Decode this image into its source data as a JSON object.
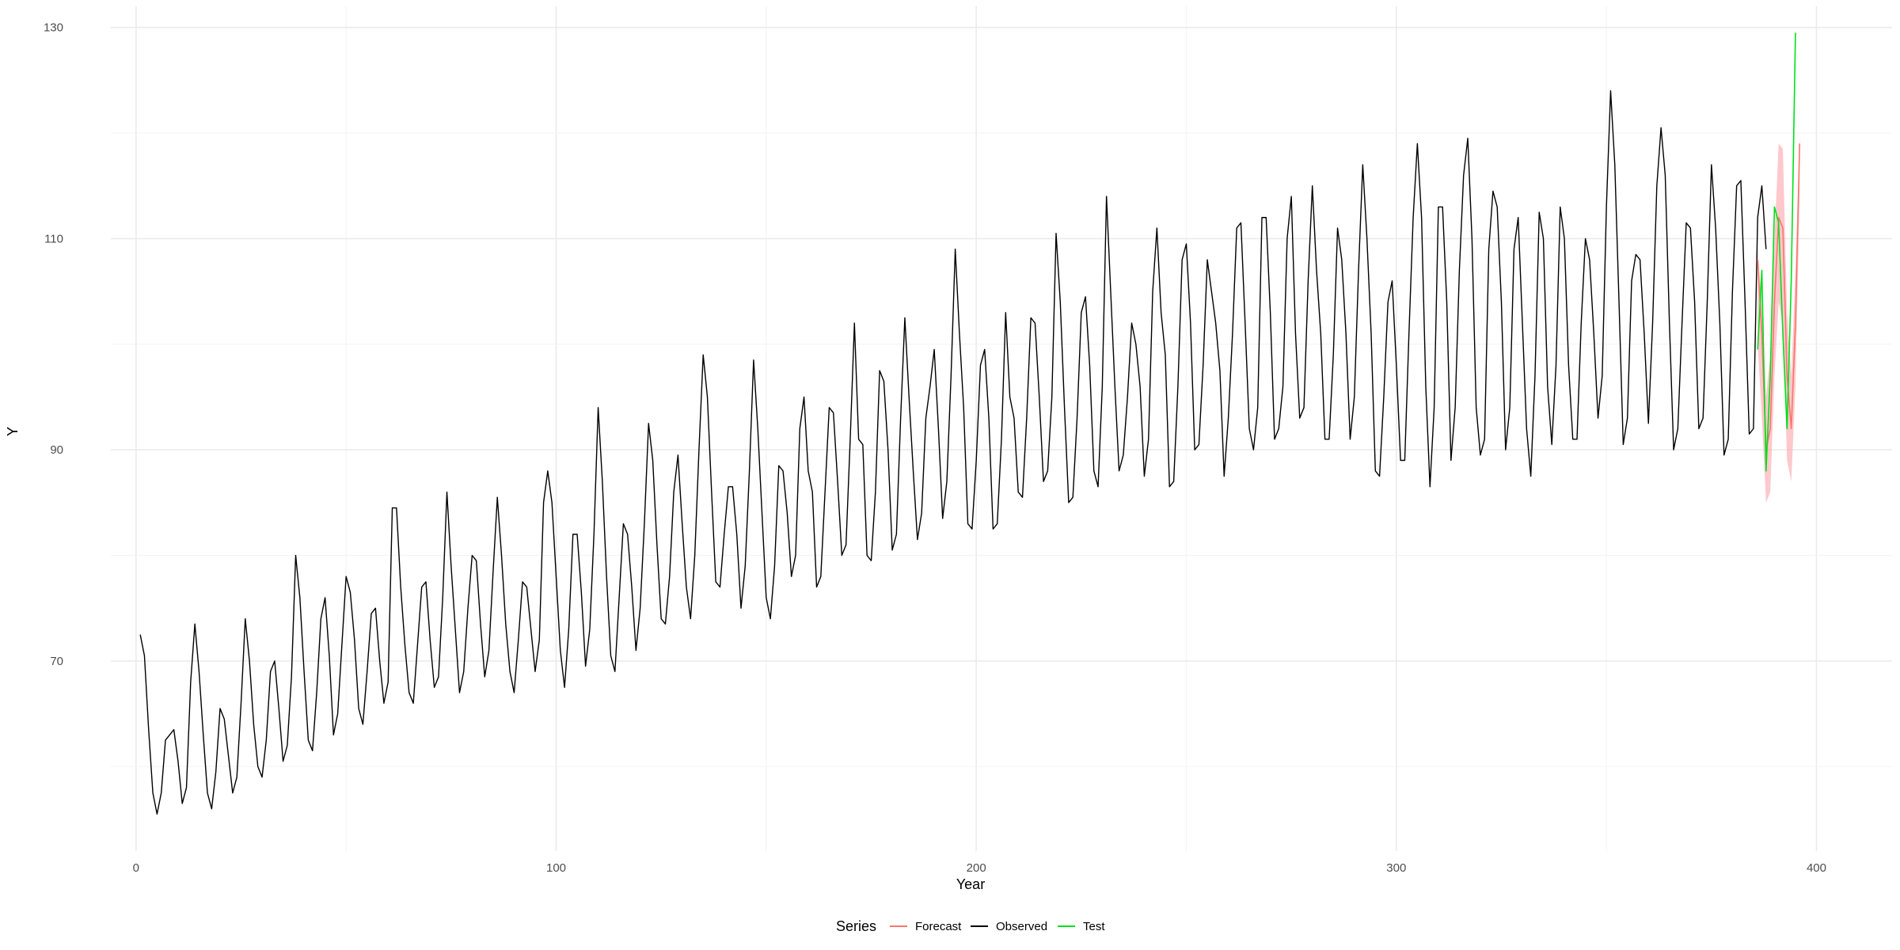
{
  "chart_data": {
    "type": "line",
    "title": "",
    "xlabel": "Year",
    "ylabel": "Y",
    "xlim": [
      -6,
      418
    ],
    "ylim": [
      52,
      132
    ],
    "x_ticks": [
      0,
      100,
      200,
      300,
      400
    ],
    "y_ticks": [
      70,
      90,
      110,
      130
    ],
    "grid": true,
    "legend": {
      "title": "Series",
      "position": "bottom",
      "entries": [
        {
          "name": "Forecast",
          "color": "#f8766d"
        },
        {
          "name": "Observed",
          "color": "#000000"
        },
        {
          "name": "Test",
          "color": "#00e01a"
        }
      ]
    },
    "series": [
      {
        "name": "Observed",
        "color": "#000000",
        "x_start": 1,
        "values": [
          72.5,
          70.5,
          63.5,
          57.5,
          55.5,
          57.5,
          62.5,
          63,
          63.5,
          60.5,
          56.5,
          58,
          68,
          73.5,
          69,
          63,
          57.5,
          56,
          59.5,
          65.5,
          64.5,
          61,
          57.5,
          59,
          66,
          74,
          70,
          64,
          60,
          59,
          62.5,
          69,
          70,
          65.5,
          60.5,
          62,
          68.5,
          80,
          76,
          69,
          62.5,
          61.5,
          67,
          74,
          76,
          70.5,
          63,
          65,
          71.5,
          78,
          76.5,
          72,
          65.5,
          64,
          69,
          74.5,
          75,
          70,
          66,
          68,
          84.5,
          84.5,
          77,
          71.5,
          67,
          66,
          71.5,
          77,
          77.5,
          72,
          67.5,
          68.5,
          76,
          86,
          79,
          73,
          67,
          69,
          75,
          80,
          79.5,
          73.5,
          68.5,
          71,
          78.5,
          85.5,
          80,
          73.5,
          69,
          67,
          72,
          77.5,
          77,
          73,
          69,
          72,
          85,
          88,
          85,
          78,
          71,
          67.5,
          73,
          82,
          82,
          76.5,
          69.5,
          73,
          82,
          94,
          87,
          78,
          70.5,
          69,
          76,
          83,
          82,
          77,
          71,
          75,
          83,
          92.5,
          89,
          81,
          74,
          73.5,
          78,
          86,
          89.5,
          83,
          77,
          74,
          80,
          90,
          99,
          95,
          86,
          77.5,
          77,
          82,
          86.5,
          86.5,
          82,
          75,
          79,
          88,
          98.5,
          92,
          84,
          76,
          74,
          79,
          88.5,
          88,
          84,
          78,
          80,
          92,
          95,
          88,
          86,
          77,
          78,
          86,
          94,
          93.5,
          87,
          80,
          81,
          91,
          102,
          91,
          90.5,
          80,
          79.5,
          86,
          97.5,
          96.5,
          90,
          80.5,
          82,
          93,
          102.5,
          95,
          88,
          81.5,
          84,
          93,
          96,
          99.5,
          92,
          83.5,
          87,
          97,
          109,
          101,
          94,
          83,
          82.5,
          89,
          98,
          99.5,
          93,
          82.5,
          83,
          91,
          103,
          95,
          93,
          86,
          85.5,
          93,
          102.5,
          102,
          95,
          87,
          88,
          95,
          110.5,
          104,
          94,
          85,
          85.5,
          93,
          103,
          104.5,
          98,
          88,
          86.5,
          96,
          114,
          105,
          96,
          88,
          89.5,
          95,
          102,
          100,
          96,
          87.5,
          91,
          105,
          111,
          103,
          99,
          86.5,
          87,
          96,
          108,
          109.5,
          102,
          90,
          90.5,
          98,
          108,
          105,
          102,
          97.5,
          87.5,
          93,
          101,
          111,
          111.5,
          102,
          92,
          90,
          94,
          112,
          112,
          103,
          91,
          92,
          96,
          110,
          114,
          101,
          93,
          94,
          106,
          115,
          107,
          101,
          91,
          91,
          99,
          111,
          108,
          101,
          91,
          95,
          107,
          117,
          110,
          101,
          88,
          87.5,
          95,
          104,
          106,
          98,
          89,
          89,
          101,
          112,
          119,
          112,
          96,
          86.5,
          94,
          113,
          113,
          104,
          89,
          94,
          107,
          116,
          119.5,
          110,
          94,
          89.5,
          91,
          109,
          114.5,
          113,
          104,
          90,
          94,
          109,
          112,
          102,
          92,
          87.5,
          97,
          112.5,
          110,
          96,
          90.5,
          98,
          113,
          110,
          98,
          91,
          91,
          102,
          110,
          108,
          101,
          93,
          97,
          113,
          124,
          117,
          104,
          90.5,
          93,
          106,
          108.5,
          108,
          101,
          92.5,
          102,
          115,
          120.5,
          116,
          102,
          90,
          92,
          102,
          111.5,
          111,
          104,
          92,
          93,
          104,
          117,
          111,
          102,
          89.5,
          91,
          105,
          115,
          115.5,
          104,
          91.5,
          92,
          112,
          115,
          109
        ]
      },
      {
        "name": "Test",
        "color": "#00e01a",
        "x_start": 386,
        "values": [
          99.5,
          107,
          88,
          97,
          113,
          111.5,
          101,
          92,
          106,
          129.5
        ]
      },
      {
        "name": "Forecast",
        "color": "#f8766d",
        "x_start": 386,
        "values": [
          108,
          101,
          90,
          92,
          104,
          112,
          111,
          97,
          92,
          102,
          119
        ],
        "lower": [
          100,
          93,
          85,
          86,
          97,
          104,
          102,
          89,
          87,
          96,
          114
        ],
        "upper": [
          109,
          104,
          95,
          99,
          110,
          119,
          118.5,
          103,
          97,
          107,
          120
        ]
      }
    ]
  }
}
